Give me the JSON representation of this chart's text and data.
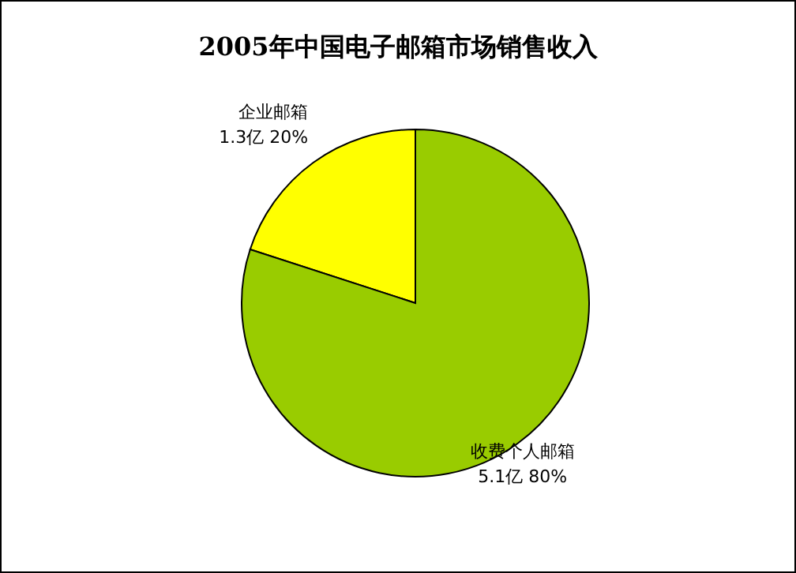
{
  "chart_data": {
    "type": "pie",
    "title": "2005年中国电子邮箱市场销售收入",
    "categories": [
      "企业邮箱",
      "收费个人邮箱"
    ],
    "values": [
      20,
      80
    ],
    "value_labels": [
      "1.3亿 20%",
      "5.1亿 80%"
    ],
    "colors": [
      "#ffff00",
      "#99cc00"
    ]
  }
}
